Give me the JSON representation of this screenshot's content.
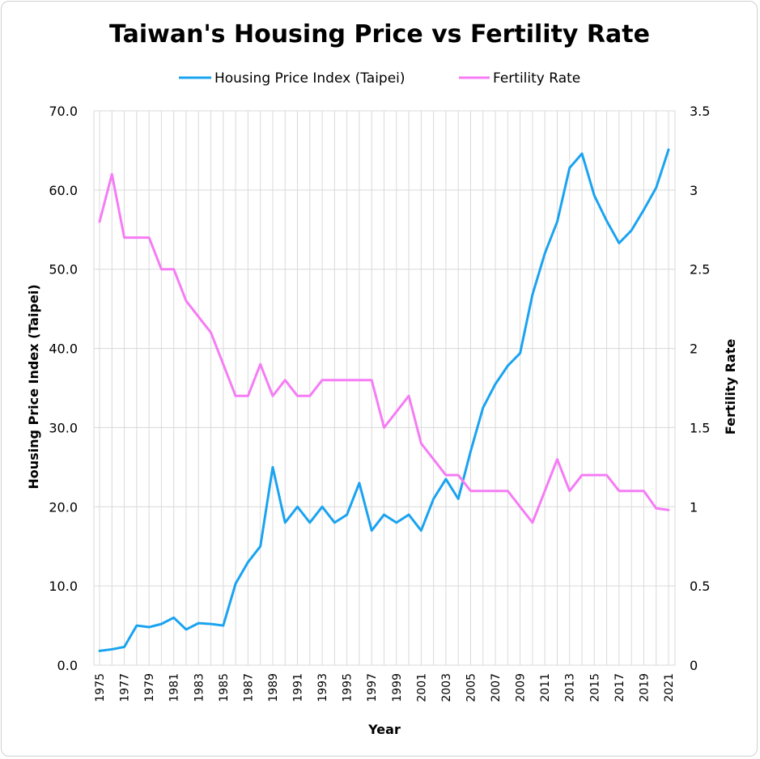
{
  "chart_data": {
    "type": "line",
    "title": "Taiwan's Housing Price vs Fertility Rate",
    "xlabel": "Year",
    "ylabel_left": "Housing Price Index (Taipei)",
    "ylabel_right": "Fertility Rate",
    "ylim_left": [
      0,
      70
    ],
    "ylim_right": [
      0,
      3.5
    ],
    "yticks_left": [
      "0.0",
      "10.0",
      "20.0",
      "30.0",
      "40.0",
      "50.0",
      "60.0",
      "70.0"
    ],
    "yticks_right": [
      "0",
      "0.5",
      "1",
      "1.5",
      "2",
      "2.5",
      "3",
      "3.5"
    ],
    "grid": true,
    "legend_position": "top",
    "x": [
      1975,
      1976,
      1977,
      1978,
      1979,
      1980,
      1981,
      1982,
      1983,
      1984,
      1985,
      1986,
      1987,
      1988,
      1989,
      1990,
      1991,
      1992,
      1993,
      1994,
      1995,
      1996,
      1997,
      1998,
      1999,
      2000,
      2001,
      2002,
      2003,
      2004,
      2005,
      2006,
      2007,
      2008,
      2009,
      2010,
      2011,
      2012,
      2013,
      2014,
      2015,
      2016,
      2017,
      2018,
      2019,
      2020,
      2021
    ],
    "xtick_labels": [
      "1975",
      "1977",
      "1979",
      "1981",
      "1983",
      "1985",
      "1987",
      "1989",
      "1991",
      "1993",
      "1995",
      "1997",
      "1999",
      "2001",
      "2003",
      "2005",
      "2007",
      "2009",
      "2011",
      "2013",
      "2015",
      "2017",
      "2019",
      "2021"
    ],
    "series": [
      {
        "name": "Housing Price Index (Taipei)",
        "axis": "left",
        "color": "#1aa3f0",
        "values": [
          1.8,
          2.0,
          2.3,
          5.0,
          4.8,
          5.2,
          6.0,
          4.5,
          5.3,
          5.2,
          5.0,
          10.3,
          13.0,
          15.0,
          25.0,
          18.0,
          20.0,
          18.0,
          20.0,
          18.0,
          19.0,
          23.0,
          17.0,
          19.0,
          18.0,
          19.0,
          17.0,
          21.0,
          23.5,
          21.0,
          27.0,
          32.5,
          35.5,
          37.8,
          39.4,
          46.8,
          52.0,
          56.0,
          62.8,
          64.6,
          59.3,
          56.1,
          53.3,
          54.9,
          57.5,
          60.3,
          65.1
        ]
      },
      {
        "name": "Fertility Rate",
        "axis": "right",
        "color": "#f57cf5",
        "values": [
          2.8,
          3.1,
          2.7,
          2.7,
          2.7,
          2.5,
          2.5,
          2.3,
          2.2,
          2.1,
          1.9,
          1.7,
          1.7,
          1.9,
          1.7,
          1.8,
          1.7,
          1.7,
          1.8,
          1.8,
          1.8,
          1.8,
          1.8,
          1.5,
          1.6,
          1.7,
          1.4,
          1.3,
          1.2,
          1.2,
          1.1,
          1.1,
          1.1,
          1.1,
          1.0,
          0.9,
          1.1,
          1.3,
          1.1,
          1.2,
          1.2,
          1.2,
          1.1,
          1.1,
          1.1,
          0.99,
          0.98
        ]
      }
    ]
  }
}
